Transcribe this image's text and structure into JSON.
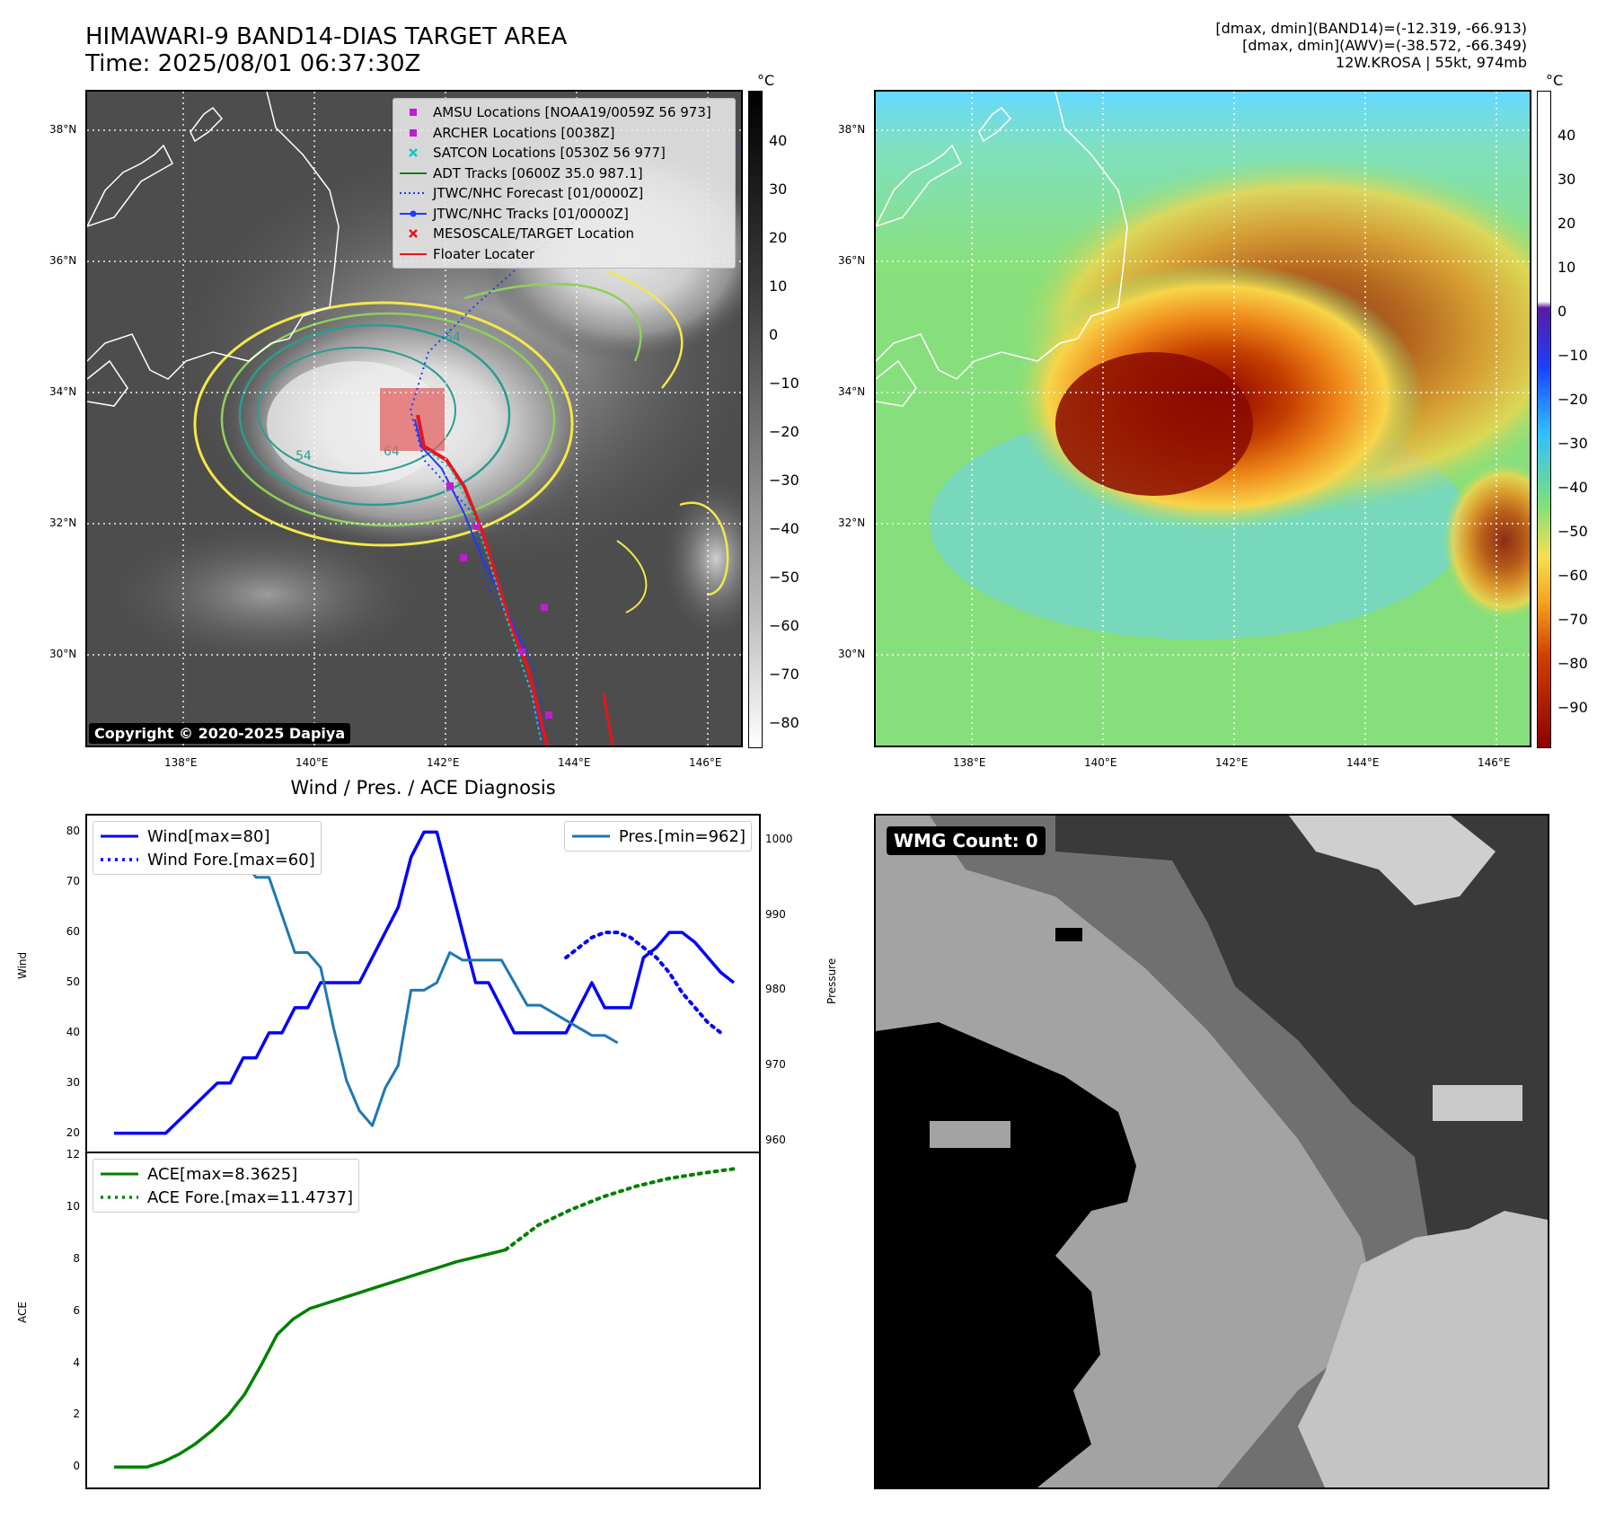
{
  "header": {
    "title_line1": "HIMAWARI-9 BAND14-DIAS TARGET AREA",
    "title_line2": "Time: 2025/08/01 06:37:30Z",
    "info_line1": "[dmax, dmin](BAND14)=(-12.319, -66.913)",
    "info_line2": "[dmax, dmin](AWV)=(-38.572, -66.349)",
    "info_line3": "12W.KROSA | 55kt, 974mb"
  },
  "map": {
    "lat_labels": [
      "38°N",
      "36°N",
      "34°N",
      "32°N",
      "30°N"
    ],
    "lon_labels": [
      "138°E",
      "140°E",
      "142°E",
      "144°E",
      "146°E"
    ],
    "copyright": "Copyright © 2020-2025 Dapiya",
    "contour_labels": [
      "64",
      "64",
      "54"
    ],
    "colors": {
      "coastline": "#ffffff",
      "contour_yellow": "#f2e84a",
      "contour_green": "#8fd05a",
      "contour_teal": "#2a9d8f",
      "track_red": "#e8141b",
      "forecast_blue": "#1a3cff",
      "satcon_cyan": "#19c3c3",
      "amsu_magenta": "#c21bd2"
    },
    "legend": [
      {
        "label": "AMSU Locations [NOAA19/0059Z 56 973]",
        "symbol": "square",
        "color": "#c21bd2"
      },
      {
        "label": "ARCHER Locations [0038Z]",
        "symbol": "square",
        "color": "#c21bd2"
      },
      {
        "label": "SATCON Locations [0530Z 56 977]",
        "symbol": "x",
        "color": "#19c3c3"
      },
      {
        "label": "ADT Tracks [0600Z 35.0 987.1]",
        "symbol": "line",
        "color": "#117a11"
      },
      {
        "label": "JTWC/NHC Forecast [01/0000Z]",
        "symbol": "dotted",
        "color": "#1a3cff"
      },
      {
        "label": "JTWC/NHC Tracks [01/0000Z]",
        "symbol": "linedot",
        "color": "#1a3cff"
      },
      {
        "label": "MESOSCALE/TARGET Location",
        "symbol": "x",
        "color": "#e8141b"
      },
      {
        "label": "Floater Locater",
        "symbol": "line",
        "color": "#e8141b"
      }
    ]
  },
  "colorbar_left": {
    "unit": "°C",
    "ticks": [
      "40",
      "30",
      "20",
      "10",
      "0",
      "−10",
      "−20",
      "−30",
      "−40",
      "−50",
      "−60",
      "−70",
      "−80"
    ]
  },
  "colorbar_right": {
    "unit": "°C",
    "ticks": [
      "40",
      "30",
      "20",
      "10",
      "0",
      "−10",
      "−20",
      "−30",
      "−40",
      "−50",
      "−60",
      "−70",
      "−80",
      "−90"
    ]
  },
  "wmg": {
    "label": "WMG Count: 0"
  },
  "chart_data": [
    {
      "type": "line",
      "title": "Wind / Pres. / ACE Diagnosis",
      "ylabel": "Wind",
      "ylabel_right": "Pressure",
      "ylim": [
        18.5,
        81.5
      ],
      "ylim_right": [
        960,
        1002
      ],
      "yticks": [
        "80",
        "70",
        "60",
        "50",
        "40",
        "30",
        "20"
      ],
      "yticks_right": [
        "1000",
        "990",
        "980",
        "970",
        "960"
      ],
      "series": [
        {
          "name": "Wind[max=80]",
          "style": "solid",
          "color": "#0000ff",
          "x": [
            0,
            4,
            6,
            8,
            9,
            10,
            11,
            12,
            13,
            14,
            15,
            16,
            17,
            18,
            19,
            20,
            21,
            22,
            23,
            24,
            25,
            26,
            27,
            28,
            29,
            30,
            31,
            32,
            33,
            34,
            35,
            36,
            37,
            38,
            39,
            40,
            41,
            42,
            43,
            44,
            45,
            46,
            47,
            48
          ],
          "values": [
            20,
            20,
            25,
            30,
            30,
            35,
            35,
            40,
            40,
            45,
            45,
            50,
            50,
            50,
            50,
            55,
            60,
            65,
            75,
            80,
            80,
            70,
            60,
            50,
            50,
            45,
            40,
            40,
            40,
            40,
            40,
            45,
            50,
            45,
            45,
            45,
            55,
            57,
            60,
            60,
            58,
            55,
            52,
            50
          ]
        },
        {
          "name": "Wind Fore.[max=60]",
          "style": "dotted",
          "color": "#0000ff",
          "x": [
            35,
            36,
            37,
            38,
            39,
            40,
            41,
            42,
            43,
            44,
            45,
            46,
            47
          ],
          "values": [
            55,
            57,
            59,
            60,
            60,
            59,
            57,
            55,
            52,
            48,
            45,
            42,
            40
          ]
        },
        {
          "name": "Pres.[min=962]",
          "style": "solid",
          "color": "#1f77b4",
          "axis": "right",
          "x": [
            0,
            1,
            2,
            3,
            4,
            5,
            6,
            7,
            8,
            9,
            10,
            11,
            12,
            13,
            14,
            15,
            16,
            17,
            18,
            19,
            20,
            21,
            22,
            23,
            24,
            25,
            26,
            27,
            28,
            29,
            30,
            31,
            32,
            33,
            34,
            35,
            36,
            37,
            38,
            39
          ],
          "values": [
            1002,
            1002,
            1002,
            1002,
            1002,
            1000,
            1000,
            999,
            999,
            997,
            997,
            995,
            995,
            990,
            985,
            985,
            983,
            975,
            968,
            964,
            962,
            967,
            970,
            980,
            980,
            981,
            985,
            984,
            984,
            984,
            984,
            981,
            978,
            978,
            977,
            976,
            975,
            974,
            974,
            973
          ]
        }
      ]
    },
    {
      "type": "line",
      "ylabel": "ACE",
      "ylim": [
        -0.3,
        12
      ],
      "yticks": [
        "12",
        "10",
        "8",
        "6",
        "4",
        "2",
        "0"
      ],
      "series": [
        {
          "name": "ACE[max=8.3625]",
          "style": "solid",
          "color": "#008000",
          "x": [
            0,
            3,
            6,
            9,
            12,
            15,
            18,
            21,
            24,
            27,
            30,
            33,
            36,
            39,
            42,
            45,
            48,
            51,
            54,
            57,
            60,
            63,
            66,
            69,
            72
          ],
          "values": [
            0,
            0,
            0,
            0.2,
            0.5,
            0.9,
            1.4,
            2.0,
            2.8,
            3.9,
            5.1,
            5.7,
            6.1,
            6.3,
            6.5,
            6.7,
            6.9,
            7.1,
            7.3,
            7.5,
            7.7,
            7.9,
            8.05,
            8.2,
            8.36
          ]
        },
        {
          "name": "ACE Fore.[max=11.4737]",
          "style": "dotted",
          "color": "#008000",
          "x": [
            72,
            78,
            84,
            90,
            96,
            102,
            108,
            114
          ],
          "values": [
            8.36,
            9.3,
            9.9,
            10.4,
            10.8,
            11.1,
            11.3,
            11.47
          ]
        }
      ]
    }
  ]
}
